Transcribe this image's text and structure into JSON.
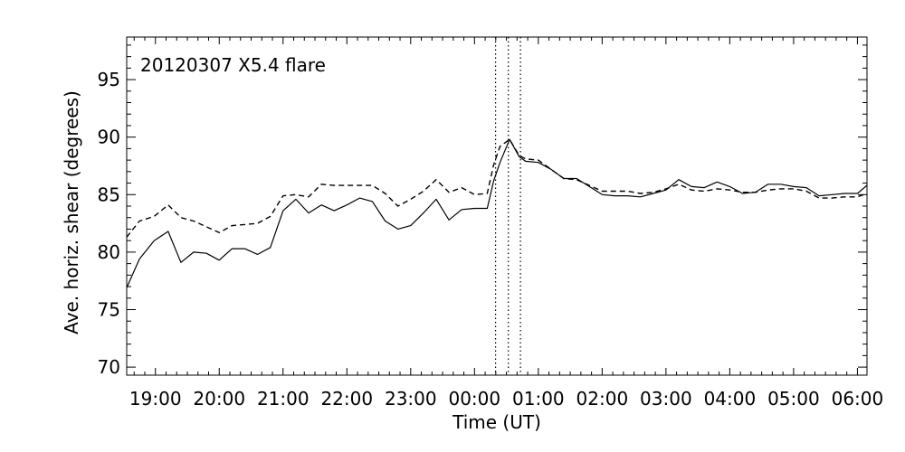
{
  "chart_data": {
    "type": "line",
    "title": "",
    "annotation": "20120307 X5.4 flare",
    "xlabel": "Time (UT)",
    "ylabel": "Ave. horiz. shear (degrees)",
    "x_unit": "hours",
    "xlim": [
      18.55,
      30.15
    ],
    "ylim": [
      69.3,
      98.7
    ],
    "grid": false,
    "legend": "none",
    "x_ticks": [
      {
        "value": 19,
        "label": "19:00"
      },
      {
        "value": 20,
        "label": "20:00"
      },
      {
        "value": 21,
        "label": "21:00"
      },
      {
        "value": 22,
        "label": "22:00"
      },
      {
        "value": 23,
        "label": "23:00"
      },
      {
        "value": 24,
        "label": "00:00"
      },
      {
        "value": 25,
        "label": "01:00"
      },
      {
        "value": 26,
        "label": "02:00"
      },
      {
        "value": 27,
        "label": "03:00"
      },
      {
        "value": 28,
        "label": "04:00"
      },
      {
        "value": 29,
        "label": "05:00"
      },
      {
        "value": 30,
        "label": "06:00"
      }
    ],
    "y_ticks": [
      {
        "value": 70,
        "label": "70"
      },
      {
        "value": 75,
        "label": "75"
      },
      {
        "value": 80,
        "label": "80"
      },
      {
        "value": 85,
        "label": "85"
      },
      {
        "value": 90,
        "label": "90"
      },
      {
        "value": 95,
        "label": "95"
      }
    ],
    "vlines": [
      24.33,
      24.53,
      24.72
    ],
    "series": [
      {
        "style": "solid",
        "points": [
          [
            18.55,
            76.9
          ],
          [
            18.75,
            79.4
          ],
          [
            18.98,
            81.0
          ],
          [
            19.2,
            81.8
          ],
          [
            19.4,
            79.1
          ],
          [
            19.6,
            80.0
          ],
          [
            19.8,
            79.9
          ],
          [
            20.0,
            79.3
          ],
          [
            20.2,
            80.3
          ],
          [
            20.4,
            80.3
          ],
          [
            20.6,
            79.8
          ],
          [
            20.8,
            80.4
          ],
          [
            21.0,
            83.6
          ],
          [
            21.2,
            84.6
          ],
          [
            21.4,
            83.4
          ],
          [
            21.6,
            84.1
          ],
          [
            21.8,
            83.6
          ],
          [
            22.0,
            84.1
          ],
          [
            22.2,
            84.7
          ],
          [
            22.4,
            84.4
          ],
          [
            22.6,
            82.7
          ],
          [
            22.8,
            82.0
          ],
          [
            23.0,
            82.3
          ],
          [
            23.2,
            83.4
          ],
          [
            23.4,
            84.6
          ],
          [
            23.6,
            82.8
          ],
          [
            23.8,
            83.7
          ],
          [
            24.0,
            83.8
          ],
          [
            24.2,
            83.8
          ],
          [
            24.3,
            86.2
          ],
          [
            24.4,
            87.8
          ],
          [
            24.55,
            89.8
          ],
          [
            24.7,
            88.3
          ],
          [
            24.8,
            87.9
          ],
          [
            25.0,
            87.8
          ],
          [
            25.2,
            87.2
          ],
          [
            25.4,
            86.4
          ],
          [
            25.6,
            86.4
          ],
          [
            25.8,
            85.7
          ],
          [
            26.0,
            85.0
          ],
          [
            26.2,
            84.9
          ],
          [
            26.4,
            84.9
          ],
          [
            26.6,
            84.8
          ],
          [
            26.8,
            85.1
          ],
          [
            27.0,
            85.4
          ],
          [
            27.2,
            86.3
          ],
          [
            27.4,
            85.7
          ],
          [
            27.6,
            85.6
          ],
          [
            27.8,
            86.1
          ],
          [
            28.0,
            85.7
          ],
          [
            28.2,
            85.1
          ],
          [
            28.4,
            85.2
          ],
          [
            28.6,
            85.9
          ],
          [
            28.8,
            85.9
          ],
          [
            29.0,
            85.7
          ],
          [
            29.2,
            85.6
          ],
          [
            29.4,
            84.9
          ],
          [
            29.6,
            85.0
          ],
          [
            29.8,
            85.1
          ],
          [
            30.0,
            85.1
          ],
          [
            30.15,
            85.8
          ]
        ]
      },
      {
        "style": "dashed",
        "points": [
          [
            18.55,
            81.3
          ],
          [
            18.75,
            82.7
          ],
          [
            18.98,
            83.1
          ],
          [
            19.2,
            84.1
          ],
          [
            19.4,
            83.0
          ],
          [
            19.6,
            82.7
          ],
          [
            19.8,
            82.2
          ],
          [
            20.0,
            81.7
          ],
          [
            20.2,
            82.3
          ],
          [
            20.4,
            82.4
          ],
          [
            20.6,
            82.5
          ],
          [
            20.8,
            83.1
          ],
          [
            21.0,
            84.9
          ],
          [
            21.2,
            85.0
          ],
          [
            21.4,
            84.8
          ],
          [
            21.6,
            85.9
          ],
          [
            21.8,
            85.8
          ],
          [
            22.0,
            85.8
          ],
          [
            22.2,
            85.8
          ],
          [
            22.4,
            85.8
          ],
          [
            22.6,
            85.1
          ],
          [
            22.8,
            84.0
          ],
          [
            23.0,
            84.6
          ],
          [
            23.2,
            85.3
          ],
          [
            23.4,
            86.3
          ],
          [
            23.6,
            85.2
          ],
          [
            23.8,
            85.6
          ],
          [
            24.0,
            85.0
          ],
          [
            24.2,
            85.1
          ],
          [
            24.3,
            87.6
          ],
          [
            24.4,
            89.2
          ],
          [
            24.55,
            89.8
          ],
          [
            24.7,
            88.4
          ],
          [
            24.8,
            88.1
          ],
          [
            25.0,
            88.0
          ],
          [
            25.2,
            87.2
          ],
          [
            25.4,
            86.4
          ],
          [
            25.6,
            86.3
          ],
          [
            25.8,
            85.8
          ],
          [
            26.0,
            85.3
          ],
          [
            26.2,
            85.3
          ],
          [
            26.4,
            85.3
          ],
          [
            26.6,
            85.1
          ],
          [
            26.8,
            85.2
          ],
          [
            27.0,
            85.5
          ],
          [
            27.2,
            85.9
          ],
          [
            27.4,
            85.4
          ],
          [
            27.6,
            85.3
          ],
          [
            27.8,
            85.5
          ],
          [
            28.0,
            85.4
          ],
          [
            28.2,
            85.2
          ],
          [
            28.4,
            85.2
          ],
          [
            28.6,
            85.4
          ],
          [
            28.8,
            85.5
          ],
          [
            29.0,
            85.5
          ],
          [
            29.2,
            85.3
          ],
          [
            29.4,
            84.7
          ],
          [
            29.6,
            84.7
          ],
          [
            29.8,
            84.8
          ],
          [
            30.0,
            84.8
          ],
          [
            30.15,
            85.1
          ]
        ]
      }
    ]
  }
}
